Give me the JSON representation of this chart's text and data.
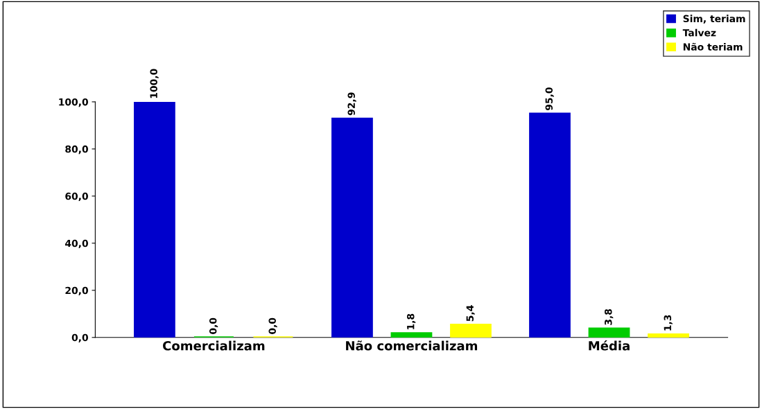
{
  "chart_data": {
    "type": "bar",
    "categories": [
      "Comercializam",
      "Não comercializam",
      "Média"
    ],
    "series": [
      {
        "name": "Sim, teriam",
        "color": "#0000cc",
        "values": [
          100.0,
          92.9,
          95.0
        ],
        "value_labels": [
          "100,0",
          "92,9",
          "95,0"
        ]
      },
      {
        "name": "Talvez",
        "color": "#00cc00",
        "values": [
          0.0,
          1.8,
          3.8
        ],
        "value_labels": [
          "0,0",
          "1,8",
          "3,8"
        ]
      },
      {
        "name": "Não teriam",
        "color": "#ffff00",
        "values": [
          0.0,
          5.4,
          1.3
        ],
        "value_labels": [
          "0,0",
          "5,4",
          "1,3"
        ]
      }
    ],
    "ylim": [
      0,
      100
    ],
    "yticks": [
      {
        "value": 0,
        "label": "0,0"
      },
      {
        "value": 20,
        "label": "20,0"
      },
      {
        "value": 40,
        "label": "40,0"
      },
      {
        "value": 60,
        "label": "60,0"
      },
      {
        "value": 80,
        "label": "80,0"
      },
      {
        "value": 100,
        "label": "100,0"
      }
    ],
    "grid": false,
    "legend": "top right"
  }
}
